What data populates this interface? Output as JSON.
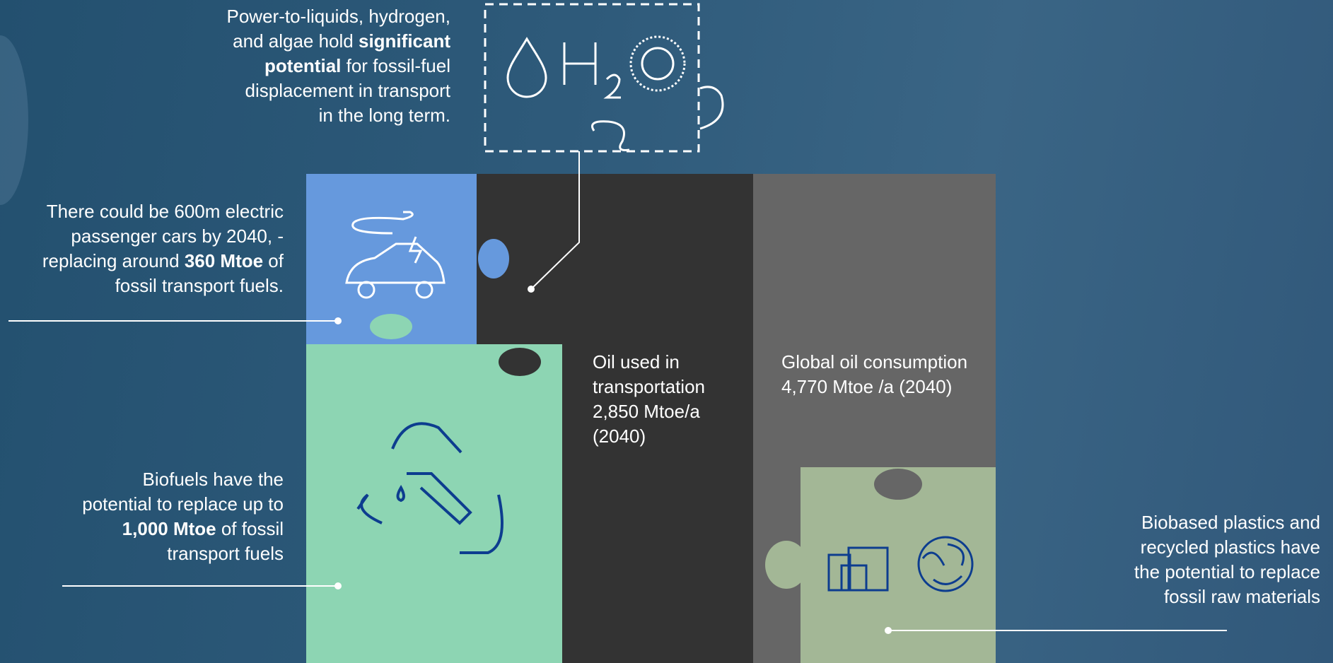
{
  "callouts": [
    {
      "lines": [
        [
          {
            "text": "Power-to-liquids, hydrogen,"
          }
        ],
        [
          {
            "text": "and algae hold "
          },
          {
            "text": "significant",
            "bold": true
          }
        ],
        [
          {
            "text": "potential",
            "bold": true
          },
          {
            "text": " for fossil-fuel"
          }
        ],
        [
          {
            "text": "displacement in transport"
          }
        ],
        [
          {
            "text": "in the long term."
          }
        ]
      ]
    },
    {
      "lines": [
        [
          {
            "text": "There could be 600m electric"
          }
        ],
        [
          {
            "text": "passenger cars by 2040, -"
          }
        ],
        [
          {
            "text": "replacing around "
          },
          {
            "text": "360 Mtoe",
            "bold": true
          },
          {
            "text": " of"
          }
        ],
        [
          {
            "text": "fossil transport fuels."
          }
        ]
      ]
    },
    {
      "lines": [
        [
          {
            "text": "Biofuels have the"
          }
        ],
        [
          {
            "text": "potential to replace up to"
          }
        ],
        [
          {
            "text": "1,000 Mtoe",
            "bold": true
          },
          {
            "text": " of fossil"
          }
        ],
        [
          {
            "text": "transport fuels"
          }
        ]
      ]
    },
    {
      "lines": [
        [
          {
            "text": "Oil used in"
          }
        ],
        [
          {
            "text": "transportation"
          }
        ],
        [
          {
            "text": "2,850 Mtoe/a"
          }
        ],
        [
          {
            "text": "(2040)"
          }
        ]
      ]
    },
    {
      "lines": [
        [
          {
            "text": "Global oil consumption"
          }
        ],
        [
          {
            "text": "4,770 Mtoe /a (2040)"
          }
        ]
      ]
    },
    {
      "lines": [
        [
          {
            "text": "Biobased plastics and"
          }
        ],
        [
          {
            "text": "recycled plastics have"
          }
        ],
        [
          {
            "text": "the potential to replace"
          }
        ],
        [
          {
            "text": "fossil raw materials"
          }
        ]
      ]
    }
  ]
}
